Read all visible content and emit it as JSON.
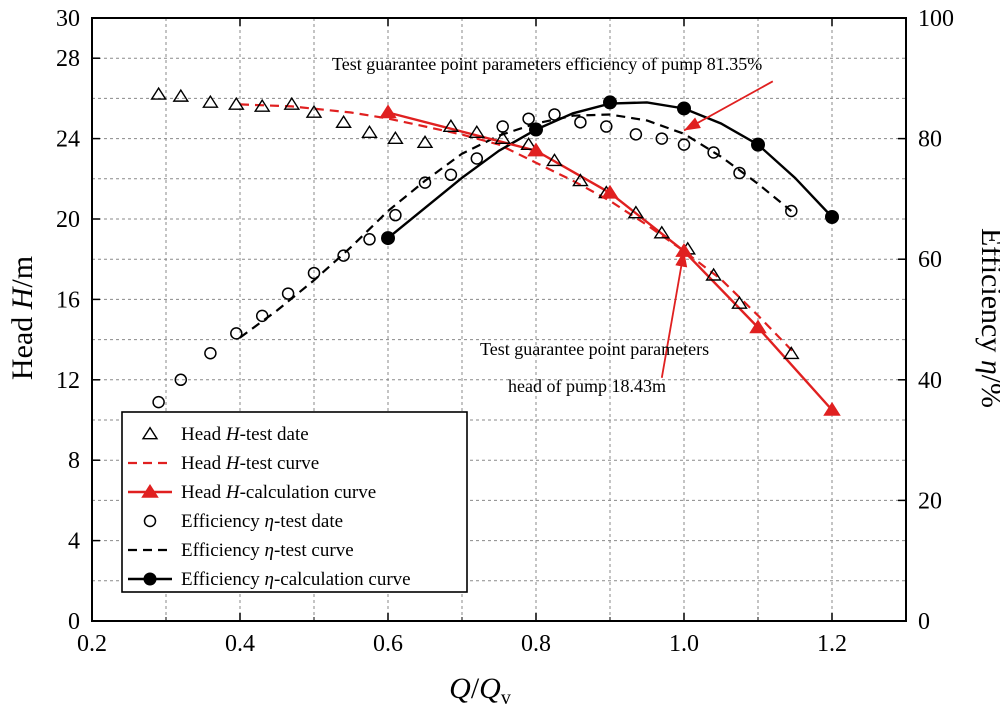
{
  "chart_data": {
    "type": "line",
    "x": {
      "label_main": "Q",
      "label_slash": "/",
      "label_q": "Q",
      "label_sub": "v",
      "range": [
        0.2,
        1.3
      ],
      "ticks": [
        "0.2",
        "0.4",
        "0.6",
        "0.8",
        "1.0",
        "1.2"
      ]
    },
    "y_left": {
      "label_prefix": "Head ",
      "label_var": "H",
      "label_unit": "/m",
      "range": [
        0,
        30
      ],
      "ticks": [
        "0",
        "4",
        "8",
        "12",
        "16",
        "20",
        "24",
        "28",
        "30"
      ]
    },
    "y_right": {
      "label_prefix": "Efficiency ",
      "label_var": "η",
      "label_unit": "/%",
      "range": [
        0,
        100
      ],
      "ticks": [
        "0",
        "20",
        "40",
        "60",
        "80",
        "100"
      ]
    },
    "grid": true,
    "legend_position": "bottom-left",
    "series": [
      {
        "name": "head-test-data",
        "axis": "left",
        "style": "markers",
        "marker": "open-triangle",
        "color": "#000000",
        "x": [
          0.29,
          0.32,
          0.36,
          0.395,
          0.43,
          0.47,
          0.5,
          0.54,
          0.575,
          0.61,
          0.65,
          0.685,
          0.72,
          0.755,
          0.79,
          0.825,
          0.86,
          0.895,
          0.935,
          0.97,
          1.005,
          1.04,
          1.075,
          1.145
        ],
        "y": [
          26.2,
          26.1,
          25.8,
          25.7,
          25.6,
          25.7,
          25.3,
          24.8,
          24.3,
          24.0,
          23.8,
          24.6,
          24.3,
          24.0,
          23.7,
          22.9,
          21.9,
          21.3,
          20.3,
          19.3,
          18.5,
          17.2,
          15.8,
          13.3
        ]
      },
      {
        "name": "head-test-curve",
        "axis": "left",
        "style": "dashed",
        "color": "#e02020",
        "x": [
          0.4,
          0.47,
          0.55,
          0.6,
          0.65,
          0.7,
          0.75,
          0.8,
          0.85,
          0.9,
          0.95,
          1.0,
          1.05,
          1.1,
          1.15
        ],
        "y": [
          25.7,
          25.6,
          25.3,
          25.0,
          24.6,
          24.2,
          23.7,
          22.8,
          21.9,
          20.9,
          19.7,
          18.4,
          17.0,
          15.2,
          13.3
        ]
      },
      {
        "name": "head-calculation-curve",
        "axis": "left",
        "style": "solid-markers",
        "marker": "filled-triangle",
        "color": "#e02020",
        "x": [
          0.6,
          0.8,
          0.9,
          1.0,
          1.1,
          1.2
        ],
        "y": [
          25.3,
          23.4,
          21.3,
          18.4,
          14.6,
          10.5
        ]
      },
      {
        "name": "efficiency-test-data",
        "axis": "right",
        "style": "markers",
        "marker": "open-circle",
        "color": "#000000",
        "x": [
          0.29,
          0.32,
          0.36,
          0.395,
          0.43,
          0.465,
          0.5,
          0.54,
          0.575,
          0.61,
          0.65,
          0.685,
          0.72,
          0.755,
          0.79,
          0.825,
          0.86,
          0.895,
          0.935,
          0.97,
          1.0,
          1.04,
          1.075,
          1.145
        ],
        "y": [
          36.3,
          40.0,
          44.4,
          47.7,
          50.6,
          54.3,
          57.7,
          60.6,
          63.3,
          67.3,
          72.7,
          74.0,
          76.7,
          82.0,
          83.3,
          84.0,
          82.7,
          82.0,
          80.7,
          80.0,
          79.0,
          77.7,
          74.3,
          68.0
        ]
      },
      {
        "name": "efficiency-test-curve",
        "axis": "right",
        "style": "dashed",
        "color": "#000000",
        "x": [
          0.4,
          0.45,
          0.5,
          0.55,
          0.6,
          0.65,
          0.7,
          0.75,
          0.8,
          0.85,
          0.9,
          0.95,
          1.0,
          1.05,
          1.1,
          1.145
        ],
        "y": [
          47.0,
          51.5,
          56.5,
          62.0,
          68.0,
          73.0,
          77.5,
          80.5,
          82.5,
          83.8,
          84.0,
          83.0,
          80.8,
          77.0,
          72.5,
          68.0
        ]
      },
      {
        "name": "efficiency-calculation-curve",
        "axis": "right",
        "style": "solid-markers",
        "marker": "filled-circle",
        "color": "#000000",
        "x": [
          0.6,
          0.8,
          0.9,
          1.0,
          1.1,
          1.2
        ],
        "y": [
          63.5,
          81.5,
          86.0,
          85.0,
          79.0,
          67.0
        ]
      }
    ],
    "smooth_curve": {
      "efficiency_calc": {
        "x": [
          0.6,
          0.65,
          0.7,
          0.75,
          0.8,
          0.85,
          0.9,
          0.95,
          1.0,
          1.05,
          1.1,
          1.15,
          1.2
        ],
        "y": [
          63.5,
          68.5,
          73.5,
          78.0,
          81.5,
          84.2,
          85.8,
          86.0,
          85.0,
          82.5,
          79.0,
          73.5,
          67.0
        ]
      }
    },
    "legend": [
      {
        "pre": "Head ",
        "var": "H",
        "post": "-test date",
        "kind": "open-triangle"
      },
      {
        "pre": "Head ",
        "var": "H",
        "post": "-test curve",
        "kind": "red-dash"
      },
      {
        "pre": "Head ",
        "var": "H",
        "post": "-calculation curve",
        "kind": "red-line-triangle"
      },
      {
        "pre": "Efficiency ",
        "var": "η",
        "post": "-test date",
        "kind": "open-circle"
      },
      {
        "pre": "Efficiency ",
        "var": "η",
        "post": "-test curve",
        "kind": "black-dash"
      },
      {
        "pre": "Efficiency ",
        "var": "η",
        "post": "-calculation curve",
        "kind": "black-line-circle"
      }
    ],
    "annotations": [
      {
        "id": "eff",
        "text": "Test guarantee point parameters efficiency of pump 81.35%",
        "arrow_from": [
          1.12,
          89.5
        ],
        "arrow_to": [
          1.0,
          81.35
        ],
        "axis": "right"
      },
      {
        "id": "head1",
        "text": "Test guarantee point parameters",
        "arrow_from": [
          0.97,
          12.1
        ],
        "arrow_to": [
          1.0,
          18.43
        ],
        "axis": "left"
      },
      {
        "id": "head2",
        "text": "head of pump 18.43m"
      }
    ]
  },
  "colors": {
    "red": "#e02020",
    "black": "#000000",
    "grid": "#8a8a8a"
  }
}
